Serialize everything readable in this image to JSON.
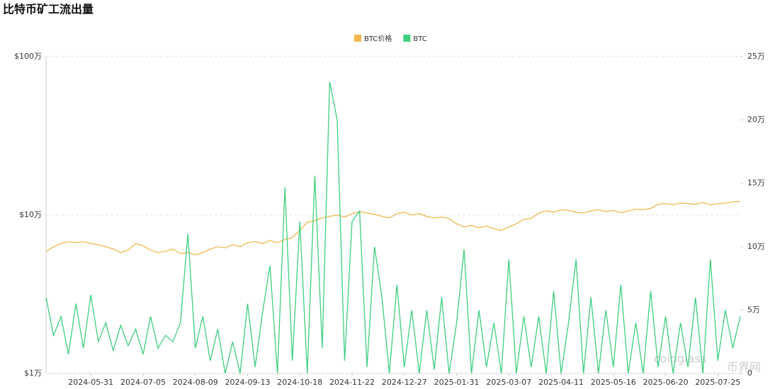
{
  "chart_data": {
    "type": "line",
    "title": "比特币矿工流出量",
    "categories": [
      null,
      null,
      null,
      null,
      null,
      null,
      "2024-05-31",
      null,
      null,
      null,
      null,
      null,
      null,
      "2024-07-05",
      null,
      null,
      null,
      null,
      null,
      null,
      "2024-08-09",
      null,
      null,
      null,
      null,
      null,
      null,
      "2024-09-13",
      null,
      null,
      null,
      null,
      null,
      null,
      "2024-10-18",
      null,
      null,
      null,
      null,
      null,
      null,
      "2024-11-22",
      null,
      null,
      null,
      null,
      null,
      null,
      "2024-12-27",
      null,
      null,
      null,
      null,
      null,
      null,
      "2025-01-31",
      null,
      null,
      null,
      null,
      null,
      null,
      "2025-03-07",
      null,
      null,
      null,
      null,
      null,
      null,
      "2025-04-11",
      null,
      null,
      null,
      null,
      null,
      null,
      "2025-05-16",
      null,
      null,
      null,
      null,
      null,
      null,
      "2025-06-20",
      null,
      null,
      null,
      null,
      null,
      null,
      "2025-07-25",
      null,
      null,
      null
    ],
    "series": [
      {
        "name": "BTC价格",
        "color": "#f0b84d",
        "values": [
          59000,
          63000,
          66000,
          68000,
          67000,
          68000,
          66000,
          65000,
          63000,
          61000,
          58000,
          60000,
          66000,
          64000,
          60000,
          58000,
          59000,
          61000,
          57000,
          58000,
          56000,
          58000,
          61000,
          63000,
          62000,
          65000,
          63000,
          67000,
          68000,
          66000,
          69000,
          67000,
          70000,
          72000,
          80000,
          90000,
          92000,
          96000,
          98000,
          100000,
          97000,
          102000,
          105000,
          103000,
          101000,
          98000,
          96000,
          102000,
          104000,
          100000,
          102000,
          98000,
          96000,
          97000,
          95000,
          88000,
          84000,
          86000,
          83000,
          85000,
          82000,
          80000,
          84000,
          88000,
          94000,
          95000,
          103000,
          106000,
          104000,
          108000,
          107000,
          104000,
          103000,
          106000,
          108000,
          105000,
          107000,
          103000,
          106000,
          109000,
          108000,
          110000,
          117000,
          118000,
          116000,
          119000,
          118000,
          117000,
          120000,
          116000,
          118000,
          119000,
          121000,
          122000
        ]
      },
      {
        "name": "BTC",
        "color": "#3ecf7f",
        "axis": "y2",
        "values": [
          60000,
          30000,
          45000,
          15000,
          55000,
          20000,
          62000,
          25000,
          40000,
          18000,
          38000,
          22000,
          35000,
          15000,
          45000,
          20000,
          30000,
          25000,
          40000,
          110000,
          20000,
          45000,
          10000,
          35000,
          0,
          25000,
          0,
          55000,
          5000,
          48000,
          85000,
          0,
          147000,
          10000,
          120000,
          0,
          156000,
          20000,
          230000,
          200000,
          10000,
          120000,
          128000,
          5000,
          100000,
          60000,
          0,
          70000,
          5000,
          50000,
          0,
          50000,
          3000,
          60000,
          0,
          40000,
          98000,
          0,
          50000,
          5000,
          40000,
          0,
          90000,
          0,
          45000,
          5000,
          45000,
          0,
          65000,
          0,
          40000,
          90000,
          0,
          60000,
          0,
          50000,
          5000,
          70000,
          0,
          40000,
          0,
          65000,
          5000,
          45000,
          0,
          40000,
          5000,
          60000,
          0,
          90000,
          10000,
          50000,
          20000,
          45000
        ]
      }
    ],
    "ylim": [
      10000,
      1000000
    ],
    "log_scale": true,
    "yticks": [
      {
        "value": 10000,
        "label": "$1万"
      },
      {
        "value": 100000,
        "label": "$10万"
      },
      {
        "value": 1000000,
        "label": "$100万"
      }
    ],
    "y2lim": [
      0,
      250000
    ],
    "y2ticks": [
      0,
      {
        "value": 50000,
        "label": "5万"
      },
      {
        "value": 100000,
        "label": "10万"
      },
      {
        "value": 150000,
        "label": "15万"
      },
      {
        "value": 200000,
        "label": "20万"
      },
      {
        "value": 250000,
        "label": "25万"
      }
    ],
    "grid": true,
    "legend": "top",
    "watermark": [
      "coinglass",
      "币界网"
    ]
  }
}
